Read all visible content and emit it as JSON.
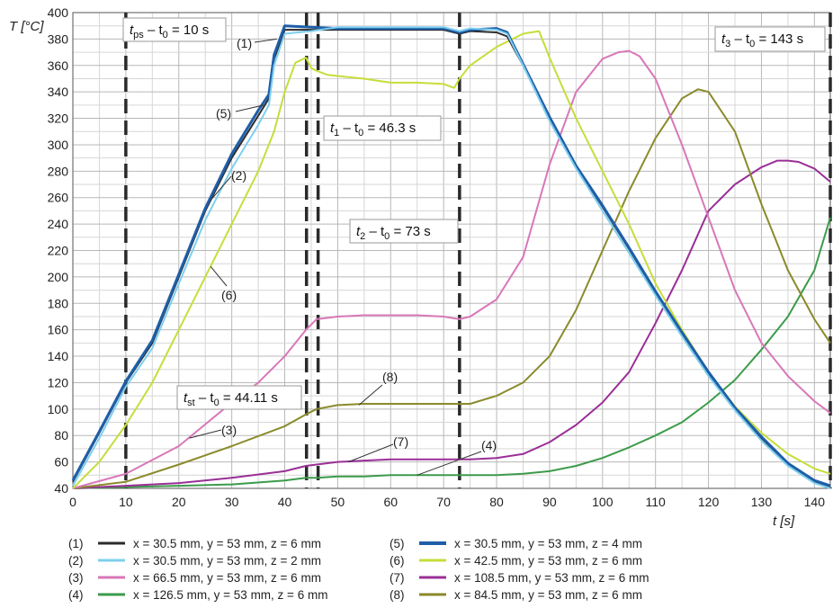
{
  "chart_data": {
    "type": "line",
    "xlabel": "t [s]",
    "ylabel": "T [°C]",
    "xlim": [
      0,
      143
    ],
    "ylim": [
      40,
      400
    ],
    "x_ticks": [
      0,
      10,
      20,
      30,
      40,
      50,
      60,
      70,
      80,
      90,
      100,
      110,
      120,
      130,
      140
    ],
    "y_ticks": [
      40,
      60,
      80,
      100,
      120,
      140,
      160,
      180,
      200,
      220,
      240,
      260,
      280,
      300,
      320,
      340,
      360,
      380,
      400
    ],
    "grid": true,
    "legend_position": "bottom",
    "vlines": [
      {
        "x": 10,
        "label": "t_ps - t_0 = 10 s"
      },
      {
        "x": 44.11,
        "label": "t_st - t_0 = 44.11 s"
      },
      {
        "x": 46.3,
        "label": "t_1 - t_0 = 46.3 s"
      },
      {
        "x": 73,
        "label": "t_2 - t_0 = 73 s"
      },
      {
        "x": 143,
        "label": "t_3 - t_0 = 143 s"
      }
    ],
    "annotations": {
      "tps": {
        "main": "t",
        "sub": "ps",
        "rest": " – t",
        "sub0": "0",
        "tail": " = 10 s"
      },
      "tst": {
        "main": "t",
        "sub": "st",
        "rest": " – t",
        "sub0": "0",
        "tail": " = 44.11 s"
      },
      "t1": {
        "main": "t",
        "sub": "1",
        "rest": " – t",
        "sub0": "0",
        "tail": " = 46.3 s"
      },
      "t2": {
        "main": "t",
        "sub": "2",
        "rest": " – t",
        "sub0": "0",
        "tail": " = 73 s"
      },
      "t3": {
        "main": "t",
        "sub": "3",
        "rest": " – t",
        "sub0": "0",
        "tail": " = 143 s"
      }
    },
    "series": [
      {
        "id": "(1)",
        "name": "x = 30.5 mm, y = 53 mm, z = 6 mm",
        "color": "#2b2b2b",
        "x": [
          0,
          5,
          10,
          15,
          20,
          25,
          30,
          35,
          37,
          38,
          40,
          45,
          50,
          55,
          60,
          65,
          70,
          73,
          75,
          80,
          82,
          85,
          90,
          95,
          100,
          105,
          110,
          115,
          120,
          125,
          130,
          135,
          140,
          143
        ],
        "y": [
          45,
          82,
          120,
          150,
          200,
          250,
          290,
          322,
          335,
          365,
          387,
          387,
          387,
          387,
          387,
          387,
          387,
          384,
          386,
          385,
          382,
          360,
          320,
          283,
          253,
          221,
          188,
          157,
          127,
          100,
          78,
          58,
          45,
          41
        ]
      },
      {
        "id": "(2)",
        "name": "x = 30.5 mm, y = 53 mm, z = 2 mm",
        "color": "#7ecfef",
        "x": [
          0,
          5,
          10,
          15,
          20,
          25,
          30,
          35,
          37,
          38,
          40,
          45,
          50,
          55,
          60,
          65,
          70,
          73,
          75,
          80,
          82,
          85,
          90,
          95,
          100,
          105,
          110,
          115,
          120,
          125,
          130,
          135,
          140,
          143
        ],
        "y": [
          42,
          78,
          117,
          146,
          195,
          243,
          282,
          315,
          330,
          360,
          384,
          386,
          389,
          389,
          389,
          389,
          389,
          386,
          388,
          387,
          384,
          360,
          318,
          282,
          250,
          218,
          186,
          155,
          125,
          99,
          76,
          57,
          44,
          40
        ]
      },
      {
        "id": "(3)",
        "name": "x = 66.5 mm, y = 53 mm, z = 6 mm",
        "color": "#d877b9",
        "x": [
          0,
          10,
          20,
          30,
          35,
          40,
          44,
          46,
          50,
          55,
          60,
          65,
          70,
          73,
          75,
          80,
          85,
          90,
          95,
          100,
          103,
          105,
          107,
          110,
          115,
          120,
          125,
          130,
          135,
          140,
          143
        ],
        "y": [
          40,
          51,
          72,
          105,
          120,
          140,
          160,
          168,
          170,
          171,
          171,
          171,
          170,
          168,
          170,
          183,
          215,
          285,
          340,
          365,
          370,
          371,
          367,
          350,
          300,
          245,
          190,
          150,
          125,
          106,
          97
        ]
      },
      {
        "id": "(4)",
        "name": "x = 126.5 mm, y = 53 mm, z = 6 mm",
        "color": "#3c9b4a",
        "x": [
          0,
          10,
          20,
          30,
          40,
          44,
          46,
          50,
          55,
          60,
          65,
          70,
          73,
          75,
          80,
          85,
          90,
          95,
          100,
          105,
          110,
          115,
          120,
          125,
          130,
          135,
          140,
          143
        ],
        "y": [
          40,
          41,
          42,
          43,
          46,
          48,
          48,
          49,
          49,
          50,
          50,
          50,
          50,
          50,
          50,
          51,
          53,
          57,
          63,
          71,
          80,
          90,
          105,
          122,
          145,
          170,
          205,
          245
        ]
      },
      {
        "id": "(5)",
        "name": "x = 30.5 mm, y = 53 mm, z = 4 mm",
        "color": "#1f5ea8",
        "x": [
          0,
          5,
          10,
          15,
          20,
          25,
          30,
          35,
          37,
          38,
          40,
          45,
          50,
          55,
          60,
          65,
          70,
          73,
          75,
          80,
          82,
          85,
          90,
          95,
          100,
          105,
          110,
          115,
          120,
          125,
          130,
          135,
          140,
          143
        ],
        "y": [
          46,
          83,
          121,
          152,
          202,
          252,
          293,
          326,
          338,
          368,
          390,
          389,
          388,
          388,
          388,
          388,
          388,
          385,
          387,
          388,
          385,
          361,
          321,
          284,
          254,
          222,
          189,
          158,
          128,
          101,
          79,
          59,
          46,
          42
        ]
      },
      {
        "id": "(6)",
        "name": "x = 42.5 mm, y = 53 mm, z = 6 mm",
        "color": "#c7dd3a",
        "x": [
          0,
          5,
          10,
          15,
          20,
          25,
          30,
          35,
          38,
          40,
          42,
          44,
          45,
          46,
          48,
          50,
          55,
          60,
          65,
          70,
          72,
          73,
          75,
          80,
          85,
          88,
          90,
          95,
          100,
          105,
          110,
          115,
          120,
          125,
          130,
          135,
          140,
          143
        ],
        "y": [
          40,
          60,
          88,
          120,
          160,
          200,
          240,
          280,
          310,
          340,
          362,
          366,
          358,
          356,
          353,
          352,
          350,
          347,
          347,
          346,
          343,
          350,
          360,
          374,
          384,
          386,
          366,
          320,
          280,
          240,
          195,
          160,
          128,
          102,
          82,
          66,
          55,
          51
        ]
      },
      {
        "id": "(7)",
        "name": "x = 108.5 mm, y = 53 mm, z = 6 mm",
        "color": "#9a2f97",
        "x": [
          0,
          10,
          20,
          30,
          40,
          44,
          46,
          50,
          55,
          60,
          65,
          70,
          73,
          75,
          80,
          85,
          90,
          95,
          100,
          105,
          110,
          115,
          120,
          125,
          130,
          133,
          135,
          137,
          140,
          143
        ],
        "y": [
          40,
          42,
          44,
          48,
          53,
          57,
          58,
          60,
          61,
          62,
          62,
          62,
          62,
          62,
          63,
          66,
          75,
          88,
          105,
          128,
          165,
          205,
          250,
          270,
          283,
          288,
          288,
          287,
          282,
          272
        ]
      },
      {
        "id": "(8)",
        "name": "x = 84.5 mm, y = 53 mm, z = 6 mm",
        "color": "#8a8a2b",
        "x": [
          0,
          10,
          20,
          30,
          40,
          44,
          46,
          50,
          55,
          60,
          65,
          70,
          73,
          75,
          80,
          85,
          90,
          95,
          100,
          105,
          110,
          115,
          118,
          120,
          125,
          130,
          135,
          140,
          143
        ],
        "y": [
          40,
          45,
          58,
          72,
          87,
          96,
          100,
          103,
          104,
          104,
          104,
          104,
          104,
          104,
          110,
          120,
          140,
          175,
          220,
          265,
          305,
          335,
          342,
          340,
          310,
          255,
          205,
          168,
          150
        ]
      }
    ]
  }
}
